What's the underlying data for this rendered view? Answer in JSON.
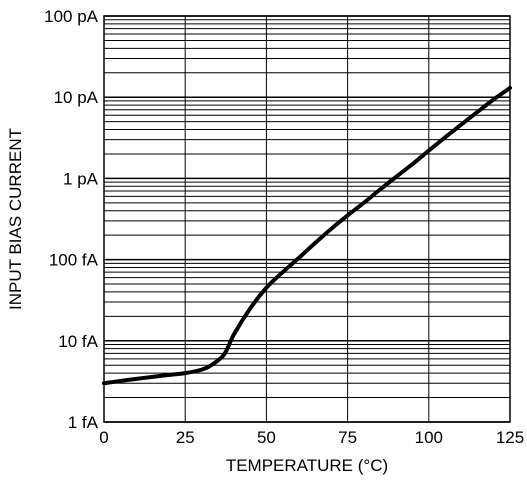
{
  "chart_data": {
    "type": "line",
    "title": "",
    "xlabel": "TEMPERATURE (°C)",
    "ylabel": "INPUT BIAS CURRENT",
    "xlim": [
      0,
      125
    ],
    "ylim_amperes": [
      1e-15,
      1e-10
    ],
    "y_scale": "log",
    "grid": true,
    "legend": "none",
    "x_ticks": [
      {
        "value": 0,
        "label": "0"
      },
      {
        "value": 25,
        "label": "25"
      },
      {
        "value": 50,
        "label": "50"
      },
      {
        "value": 75,
        "label": "75"
      },
      {
        "value": 100,
        "label": "100"
      },
      {
        "value": 125,
        "label": "125"
      }
    ],
    "y_ticks": [
      {
        "value": 1e-15,
        "label": "1 fA"
      },
      {
        "value": 1e-14,
        "label": "10 fA"
      },
      {
        "value": 1e-13,
        "label": "100 fA"
      },
      {
        "value": 1e-12,
        "label": "1 pA"
      },
      {
        "value": 1e-11,
        "label": "10 pA"
      },
      {
        "value": 1e-10,
        "label": "100 pA"
      }
    ],
    "series": [
      {
        "points": [
          {
            "x": 0,
            "y": 3e-15
          },
          {
            "x": 5,
            "y": 3.2e-15
          },
          {
            "x": 10,
            "y": 3.4e-15
          },
          {
            "x": 15,
            "y": 3.6e-15
          },
          {
            "x": 20,
            "y": 3.8e-15
          },
          {
            "x": 25,
            "y": 4e-15
          },
          {
            "x": 30,
            "y": 4.4e-15
          },
          {
            "x": 33,
            "y": 5e-15
          },
          {
            "x": 37,
            "y": 6.8e-15
          },
          {
            "x": 40,
            "y": 1.2e-14
          },
          {
            "x": 45,
            "y": 2.5e-14
          },
          {
            "x": 50,
            "y": 4.5e-14
          },
          {
            "x": 55,
            "y": 7e-14
          },
          {
            "x": 60,
            "y": 1.05e-13
          },
          {
            "x": 65,
            "y": 1.6e-13
          },
          {
            "x": 70,
            "y": 2.4e-13
          },
          {
            "x": 75,
            "y": 3.5e-13
          },
          {
            "x": 80,
            "y": 5e-13
          },
          {
            "x": 85,
            "y": 7.3e-13
          },
          {
            "x": 90,
            "y": 1.05e-12
          },
          {
            "x": 95,
            "y": 1.5e-12
          },
          {
            "x": 100,
            "y": 2.2e-12
          },
          {
            "x": 105,
            "y": 3.2e-12
          },
          {
            "x": 110,
            "y": 4.6e-12
          },
          {
            "x": 115,
            "y": 6.6e-12
          },
          {
            "x": 120,
            "y": 9.4e-12
          },
          {
            "x": 125,
            "y": 1.3e-11
          }
        ]
      }
    ]
  },
  "colors": {
    "line": "#000000",
    "grid": "#000000",
    "background": "#ffffff"
  }
}
